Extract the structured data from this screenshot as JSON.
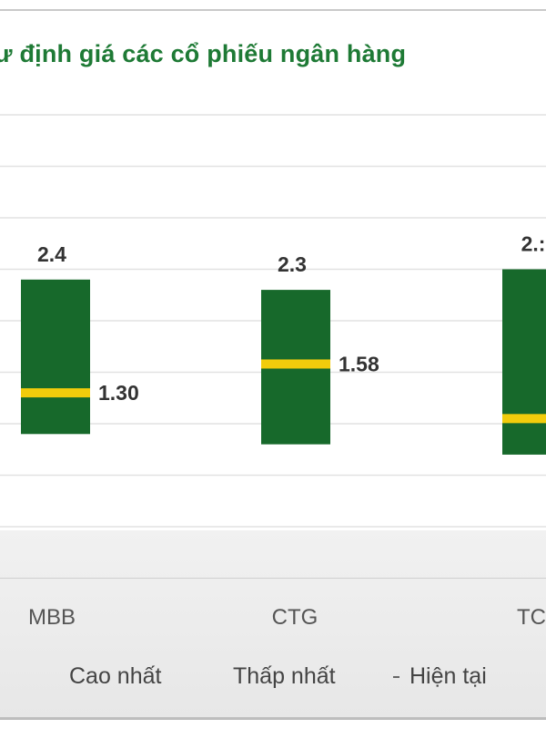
{
  "chart_data": {
    "type": "bar",
    "title": "ư định giá các cổ phiếu ngân hàng",
    "categories": [
      "MBB",
      "CTG",
      "TC"
    ],
    "ylim": [
      0,
      4.0
    ],
    "grid": true,
    "legend": [
      "Cao nhất",
      "Thấp nhất",
      "Hiện tại"
    ],
    "legend_position": "bottom",
    "series": [
      {
        "name": "Cao nhất",
        "values": [
          2.4,
          2.3,
          2.5
        ],
        "labels": [
          "2.4",
          "2.3",
          "2.:"
        ]
      },
      {
        "name": "Thấp nhất",
        "values": [
          0.9,
          0.8,
          0.7
        ]
      },
      {
        "name": "Hiện tại",
        "values": [
          1.3,
          1.58,
          1.05
        ],
        "labels": [
          "1.30",
          "1.58",
          ""
        ]
      }
    ],
    "colors": {
      "range": "#17692b",
      "current": "#f2cc0c",
      "grid": "#e2e2e2"
    }
  }
}
